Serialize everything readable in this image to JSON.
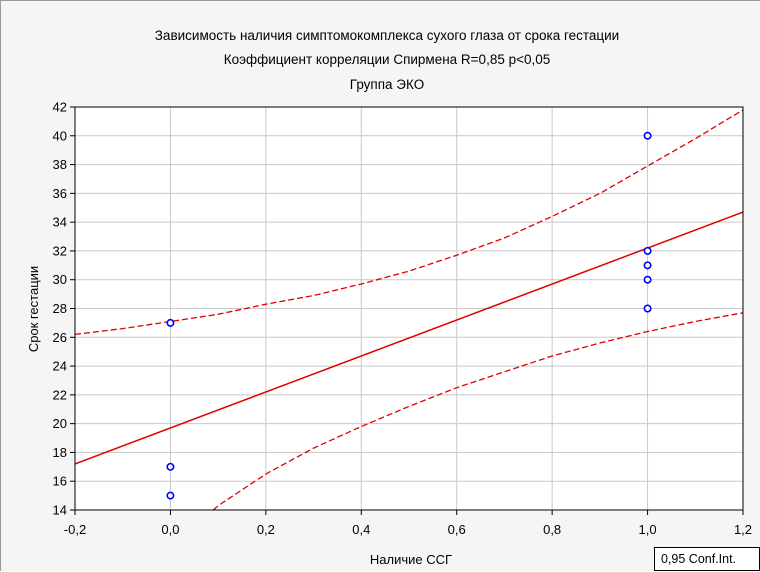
{
  "chart_data": {
    "type": "scatter",
    "title_lines": [
      "Зависимость наличия симптомокомплекса сухого глаза от срока гестации",
      "Коэффициент корреляции Спирмена R=0,85 p<0,05",
      "Группа ЭКО"
    ],
    "xlabel": "Наличие ССГ",
    "ylabel": "Срок гестации",
    "xlim": [
      -0.2,
      1.2
    ],
    "ylim": [
      14,
      42
    ],
    "x_ticks": [
      -0.2,
      0.0,
      0.2,
      0.4,
      0.6,
      0.8,
      1.0,
      1.2
    ],
    "x_tick_labels": [
      "-0,2",
      "0,0",
      "0,2",
      "0,4",
      "0,6",
      "0,8",
      "1,0",
      "1,2"
    ],
    "y_ticks": [
      14,
      16,
      18,
      20,
      22,
      24,
      26,
      28,
      30,
      32,
      34,
      36,
      38,
      40,
      42
    ],
    "y_tick_labels": [
      "14",
      "16",
      "18",
      "20",
      "22",
      "24",
      "26",
      "28",
      "30",
      "32",
      "34",
      "36",
      "38",
      "40",
      "42"
    ],
    "grid": true,
    "points": {
      "x": [
        0,
        0,
        0,
        1,
        1,
        1,
        1,
        1
      ],
      "y": [
        27,
        17,
        15,
        40,
        32,
        31,
        30,
        28
      ]
    },
    "regression_line": {
      "x": [
        -0.2,
        1.2
      ],
      "y": [
        17.2,
        34.7
      ]
    },
    "ci_upper": {
      "x": [
        -0.2,
        -0.1,
        0.0,
        0.1,
        0.2,
        0.3,
        0.4,
        0.5,
        0.6,
        0.7,
        0.8,
        0.9,
        1.0,
        1.1,
        1.2
      ],
      "y": [
        26.2,
        26.6,
        27.1,
        27.6,
        28.3,
        28.9,
        29.7,
        30.6,
        31.7,
        32.9,
        34.4,
        36.0,
        37.9,
        39.8,
        41.8
      ]
    },
    "ci_lower": {
      "x": [
        0.09,
        0.1,
        0.2,
        0.3,
        0.4,
        0.5,
        0.6,
        0.7,
        0.8,
        0.9,
        1.0,
        1.1,
        1.2
      ],
      "y": [
        14.0,
        14.3,
        16.5,
        18.3,
        19.8,
        21.2,
        22.5,
        23.6,
        24.7,
        25.6,
        26.4,
        27.1,
        27.7
      ]
    },
    "colors": {
      "points": "#0000ff",
      "lines": "#e00000",
      "grid": "#c8c8c8"
    },
    "legend": {
      "text": "0,95 Conf.Int.",
      "placement": "bottom-right"
    }
  }
}
